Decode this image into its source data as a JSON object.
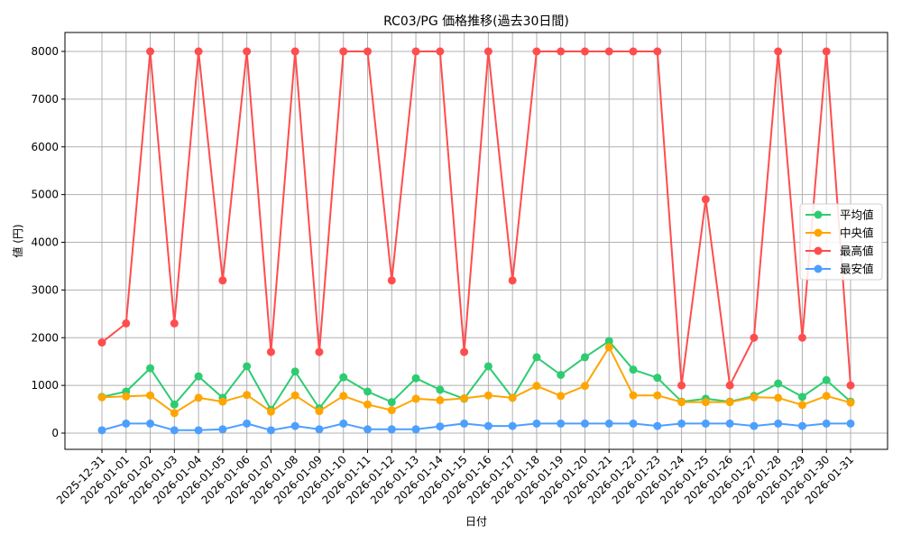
{
  "chart_data": {
    "type": "line",
    "title": "RC03/PG 価格推移(過去30日間)",
    "xlabel": "日付",
    "ylabel": "値 (円)",
    "ylim": [
      -330,
      8400
    ],
    "yticks": [
      0,
      1000,
      2000,
      3000,
      4000,
      5000,
      6000,
      7000,
      8000
    ],
    "grid": true,
    "legend_position": "center right",
    "x": [
      "2025-12-31",
      "2026-01-01",
      "2026-01-02",
      "2026-01-03",
      "2026-01-04",
      "2026-01-05",
      "2026-01-06",
      "2026-01-07",
      "2026-01-08",
      "2026-01-09",
      "2026-01-10",
      "2026-01-11",
      "2026-01-12",
      "2026-01-13",
      "2026-01-14",
      "2026-01-15",
      "2026-01-16",
      "2026-01-17",
      "2026-01-18",
      "2026-01-19",
      "2026-01-20",
      "2026-01-21",
      "2026-01-22",
      "2026-01-23",
      "2026-01-24",
      "2026-01-25",
      "2026-01-26",
      "2026-01-27",
      "2026-01-28",
      "2026-01-29",
      "2026-01-30",
      "2026-01-31"
    ],
    "series": [
      {
        "name": "平均値",
        "color": "#2ecc71",
        "values": [
          760,
          870,
          1360,
          600,
          1190,
          740,
          1400,
          490,
          1290,
          520,
          1170,
          870,
          650,
          1150,
          910,
          720,
          1400,
          740,
          1590,
          1220,
          1590,
          1930,
          1330,
          1160,
          660,
          720,
          660,
          780,
          1040,
          760,
          1110,
          660
        ]
      },
      {
        "name": "中央値",
        "color": "#ffa500",
        "values": [
          750,
          770,
          790,
          420,
          740,
          660,
          800,
          450,
          790,
          460,
          780,
          600,
          480,
          720,
          690,
          730,
          790,
          740,
          990,
          780,
          990,
          1800,
          790,
          790,
          650,
          650,
          650,
          750,
          740,
          590,
          780,
          640
        ]
      },
      {
        "name": "最高値",
        "color": "#ff4d4d",
        "values": [
          1900,
          2300,
          8000,
          2300,
          8000,
          3200,
          8000,
          1700,
          8000,
          1700,
          8000,
          8000,
          3200,
          8000,
          8000,
          1700,
          8000,
          3200,
          8000,
          8000,
          8000,
          8000,
          8000,
          8000,
          1000,
          4900,
          1000,
          2000,
          8000,
          2000,
          8000,
          1000
        ]
      },
      {
        "name": "最安値",
        "color": "#4d9fff",
        "values": [
          60,
          200,
          200,
          60,
          60,
          80,
          200,
          60,
          150,
          80,
          200,
          80,
          80,
          80,
          140,
          200,
          150,
          150,
          200,
          200,
          200,
          200,
          200,
          150,
          200,
          200,
          200,
          150,
          200,
          150,
          200,
          200
        ]
      }
    ]
  }
}
